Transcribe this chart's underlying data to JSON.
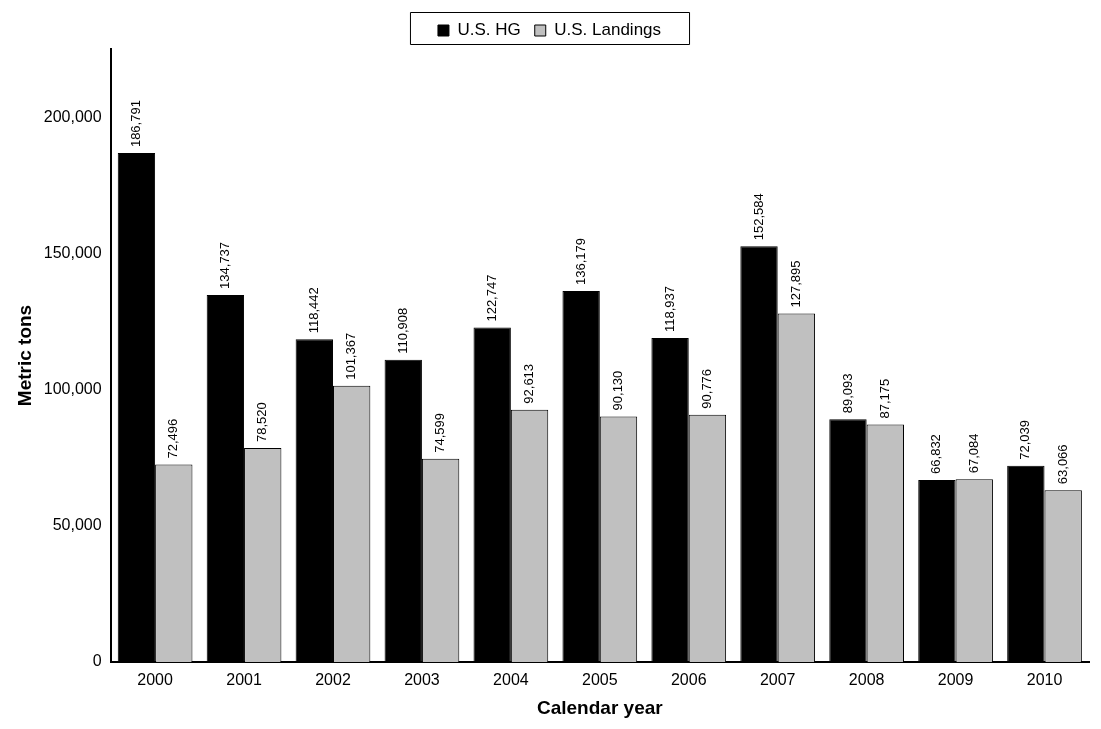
{
  "chart_data": {
    "type": "bar",
    "xlabel": "Calendar year",
    "ylabel": "Metric tons",
    "categories": [
      "2000",
      "2001",
      "2002",
      "2003",
      "2004",
      "2005",
      "2006",
      "2007",
      "2008",
      "2009",
      "2010"
    ],
    "series": [
      {
        "name": "U.S. HG",
        "color": "#000000",
        "values": [
          186791,
          134737,
          118442,
          110908,
          122747,
          136179,
          118937,
          152584,
          89093,
          66832,
          72039
        ],
        "value_labels": [
          "186,791",
          "134,737",
          "118,442",
          "110,908",
          "122,747",
          "136,179",
          "118,937",
          "152,584",
          "89,093",
          "66,832",
          "72,039"
        ]
      },
      {
        "name": "U.S. Landings",
        "color": "#c0c0c0",
        "values": [
          72496,
          78520,
          101367,
          74599,
          92613,
          90130,
          90776,
          127895,
          87175,
          67084,
          63066
        ],
        "value_labels": [
          "72,496",
          "78,520",
          "101,367",
          "74,599",
          "92,613",
          "90,130",
          "90,776",
          "127,895",
          "87,175",
          "67,084",
          "63,066"
        ]
      }
    ],
    "ylim": [
      0,
      225000
    ],
    "yticks": [
      0,
      {
        "value": 50000,
        "label": "50,000"
      },
      {
        "value": 100000,
        "label": "100,000"
      },
      {
        "value": 150000,
        "label": "150,000"
      },
      {
        "value": 200000,
        "label": "200,000"
      }
    ],
    "grid": false,
    "legend": "top"
  }
}
